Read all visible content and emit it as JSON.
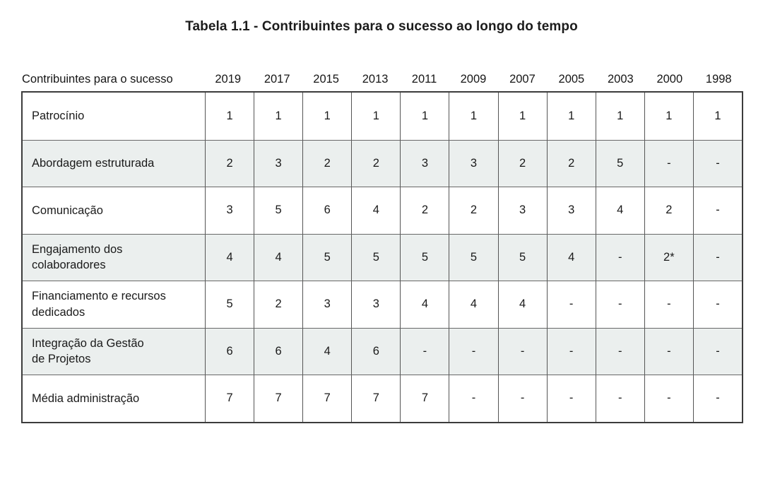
{
  "title": "Tabela 1.1 - Contribuintes para o sucesso ao longo do tempo",
  "table": {
    "label_header": "Contribuintes para o sucesso",
    "year_headers": [
      "2019",
      "2017",
      "2015",
      "2013",
      "2011",
      "2009",
      "2007",
      "2005",
      "2003",
      "2000",
      "1998"
    ],
    "rows": [
      {
        "label": "Patrocínio",
        "values": [
          "1",
          "1",
          "1",
          "1",
          "1",
          "1",
          "1",
          "1",
          "1",
          "1",
          "1"
        ],
        "striped": false
      },
      {
        "label": "Abordagem estruturada",
        "values": [
          "2",
          "3",
          "2",
          "2",
          "3",
          "3",
          "2",
          "2",
          "5",
          "-",
          "-"
        ],
        "striped": true
      },
      {
        "label": "Comunicação",
        "values": [
          "3",
          "5",
          "6",
          "4",
          "2",
          "2",
          "3",
          "3",
          "4",
          "2",
          "-"
        ],
        "striped": false
      },
      {
        "label": "Engajamento dos\ncolaboradores",
        "values": [
          "4",
          "4",
          "5",
          "5",
          "5",
          "5",
          "5",
          "4",
          "-",
          "2*",
          "-"
        ],
        "striped": true
      },
      {
        "label": "Financiamento e recursos\ndedicados",
        "values": [
          "5",
          "2",
          "3",
          "3",
          "4",
          "4",
          "4",
          "-",
          "-",
          "-",
          "-"
        ],
        "striped": false
      },
      {
        "label": "Integração da Gestão\nde Projetos",
        "values": [
          "6",
          "6",
          "4",
          "6",
          "-",
          "-",
          "-",
          "-",
          "-",
          "-",
          "-"
        ],
        "striped": true
      },
      {
        "label": "Média administração",
        "values": [
          "7",
          "7",
          "7",
          "7",
          "7",
          "-",
          "-",
          "-",
          "-",
          "-",
          "-"
        ],
        "striped": false
      }
    ]
  },
  "colors": {
    "stripe": "#ebefee",
    "grid_border": "#555555",
    "outer_border": "#3c3c3c",
    "text": "#1a1a1a"
  },
  "chart_data": {
    "type": "table",
    "title": "Tabela 1.1 - Contribuintes para o sucesso ao longo do tempo",
    "row_header": "Contribuintes para o sucesso",
    "columns": [
      "2019",
      "2017",
      "2015",
      "2013",
      "2011",
      "2009",
      "2007",
      "2005",
      "2003",
      "2000",
      "1998"
    ],
    "series": [
      {
        "name": "Patrocínio",
        "values": [
          1,
          1,
          1,
          1,
          1,
          1,
          1,
          1,
          1,
          1,
          1
        ]
      },
      {
        "name": "Abordagem estruturada",
        "values": [
          2,
          3,
          2,
          2,
          3,
          3,
          2,
          2,
          5,
          null,
          null
        ]
      },
      {
        "name": "Comunicação",
        "values": [
          3,
          5,
          6,
          4,
          2,
          2,
          3,
          3,
          4,
          2,
          null
        ]
      },
      {
        "name": "Engajamento dos colaboradores",
        "values": [
          4,
          4,
          5,
          5,
          5,
          5,
          5,
          4,
          null,
          "2*",
          null
        ]
      },
      {
        "name": "Financiamento e recursos dedicados",
        "values": [
          5,
          2,
          3,
          3,
          4,
          4,
          4,
          null,
          null,
          null,
          null
        ]
      },
      {
        "name": "Integração da Gestão de Projetos",
        "values": [
          6,
          6,
          4,
          6,
          null,
          null,
          null,
          null,
          null,
          null,
          null
        ]
      },
      {
        "name": "Média administração",
        "values": [
          7,
          7,
          7,
          7,
          7,
          null,
          null,
          null,
          null,
          null,
          null
        ]
      }
    ],
    "missing_marker": "-",
    "layout": {
      "grid": true,
      "striped_rows": [
        1,
        3,
        5
      ],
      "header_outside_border": true
    }
  }
}
